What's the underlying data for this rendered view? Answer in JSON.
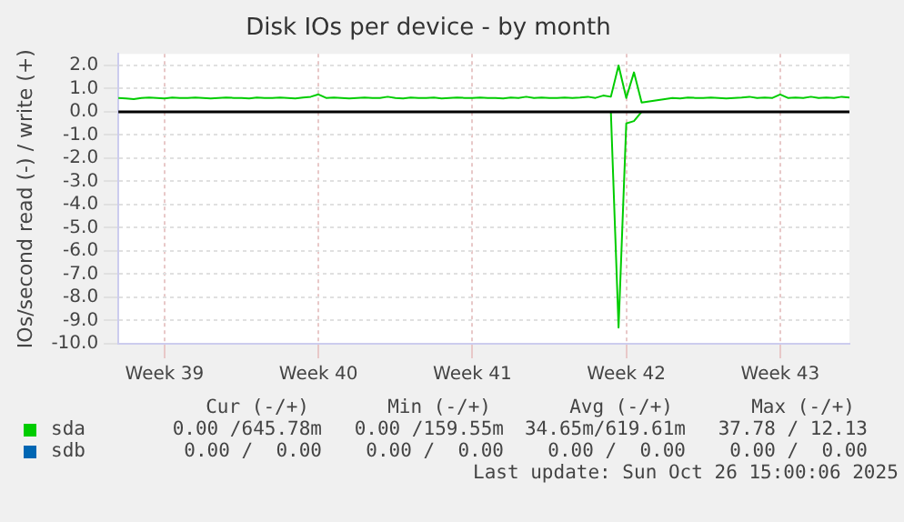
{
  "chart_data": {
    "type": "line",
    "title": "Disk IOs per device - by month",
    "ylabel": "IOs/second read (-) / write (+)",
    "categories": [
      null,
      null,
      null,
      null,
      null,
      null,
      "Week 39",
      null,
      null,
      null,
      null,
      null,
      null,
      null,
      null,
      null,
      null,
      null,
      null,
      null,
      null,
      null,
      null,
      null,
      null,
      null,
      "Week 40",
      null,
      null,
      null,
      null,
      null,
      null,
      null,
      null,
      null,
      null,
      null,
      null,
      null,
      null,
      null,
      null,
      null,
      null,
      null,
      "Week 41",
      null,
      null,
      null,
      null,
      null,
      null,
      null,
      null,
      null,
      null,
      null,
      null,
      null,
      null,
      null,
      null,
      null,
      null,
      null,
      "Week 42",
      null,
      null,
      null,
      null,
      null,
      null,
      null,
      null,
      null,
      null,
      null,
      null,
      null,
      null,
      null,
      null,
      null,
      null,
      null,
      "Week 43",
      null,
      null,
      null,
      null,
      null,
      null,
      null,
      null,
      null
    ],
    "ylim": [
      -10,
      2.5
    ],
    "yticks": [
      {
        "value": -10,
        "label": "-10.0"
      },
      {
        "value": -9,
        "label": "-9.0"
      },
      {
        "value": -8,
        "label": "-8.0"
      },
      {
        "value": -7,
        "label": "-7.0"
      },
      {
        "value": -6,
        "label": "-6.0"
      },
      {
        "value": -5,
        "label": "-5.0"
      },
      {
        "value": -4,
        "label": "-4.0"
      },
      {
        "value": -3,
        "label": "-3.0"
      },
      {
        "value": -2,
        "label": "-2.0"
      },
      {
        "value": -1,
        "label": "-1.0"
      },
      {
        "value": 0,
        "label": "0.0"
      },
      {
        "value": 1,
        "label": "1.0"
      },
      {
        "value": 2,
        "label": "2.0"
      }
    ],
    "grid": true,
    "legend": "bottom",
    "marker": "none",
    "line_style": "solid",
    "ref_lines": [
      {
        "axis": "y",
        "value": 0,
        "color": "#000000"
      }
    ],
    "series": [
      {
        "name": "sda",
        "color": "#00cc00",
        "values": [
          0.6,
          0.58,
          0.55,
          0.6,
          0.62,
          0.6,
          0.58,
          0.62,
          0.6,
          0.6,
          0.62,
          0.6,
          0.58,
          0.6,
          0.62,
          0.6,
          0.6,
          0.58,
          0.62,
          0.6,
          0.6,
          0.62,
          0.6,
          0.58,
          0.62,
          0.65,
          0.75,
          0.6,
          0.62,
          0.6,
          0.58,
          0.6,
          0.62,
          0.6,
          0.6,
          0.65,
          0.6,
          0.58,
          0.62,
          0.6,
          0.6,
          0.62,
          0.58,
          0.6,
          0.62,
          0.6,
          0.6,
          0.62,
          0.6,
          0.6,
          0.58,
          0.62,
          0.6,
          0.65,
          0.6,
          0.62,
          0.6,
          0.6,
          0.62,
          0.6,
          0.62,
          0.65,
          0.6,
          0.7,
          0.65,
          2.0,
          0.6,
          1.7,
          0.4,
          0.45,
          0.5,
          0.55,
          0.6,
          0.58,
          0.62,
          0.6,
          0.6,
          0.62,
          0.6,
          0.58,
          0.6,
          0.62,
          0.65,
          0.6,
          0.62,
          0.6,
          0.75,
          0.6,
          0.62,
          0.6,
          0.65,
          0.6,
          0.62,
          0.6,
          0.65,
          0.62
        ]
      },
      {
        "color": "#00cc00",
        "values": [
          null,
          null,
          null,
          null,
          null,
          null,
          null,
          null,
          null,
          null,
          null,
          null,
          null,
          null,
          null,
          null,
          null,
          null,
          null,
          null,
          null,
          null,
          null,
          null,
          null,
          null,
          null,
          null,
          null,
          null,
          null,
          null,
          null,
          null,
          null,
          null,
          null,
          null,
          null,
          null,
          null,
          null,
          null,
          null,
          null,
          null,
          null,
          null,
          null,
          null,
          null,
          null,
          null,
          null,
          null,
          null,
          null,
          null,
          null,
          null,
          null,
          null,
          null,
          null,
          0,
          -9.3,
          -0.5,
          -0.4,
          0,
          null,
          null,
          null,
          null,
          null,
          null,
          null,
          null,
          null,
          null,
          null,
          null,
          null,
          null,
          null,
          null,
          null,
          null,
          null,
          null,
          null,
          null,
          null,
          null,
          null,
          null,
          null
        ]
      },
      {
        "name": "sdb",
        "color": "#0066b3",
        "values": [
          null,
          null,
          null,
          null,
          null,
          null,
          null,
          null,
          null,
          null,
          null,
          null,
          null,
          null,
          null,
          null,
          null,
          null,
          null,
          null,
          null,
          null,
          null,
          null,
          null,
          null,
          null,
          null,
          null,
          null,
          null,
          null,
          null,
          null,
          null,
          null,
          null,
          null,
          null,
          null,
          null,
          null,
          null,
          null,
          null,
          null,
          null,
          null,
          null,
          null,
          null,
          null,
          null,
          null,
          null,
          null,
          null,
          null,
          null,
          null,
          null,
          null,
          null,
          null,
          null,
          null,
          null,
          null,
          null,
          null,
          null,
          null,
          null,
          null,
          null,
          null,
          null,
          null,
          null,
          null,
          null,
          null,
          null,
          null,
          null,
          null,
          null,
          null,
          null,
          null,
          null,
          null,
          null,
          null,
          null,
          null
        ]
      }
    ],
    "annotations": [
      "Cur (-/+)",
      "Min (-/+)",
      "Avg (-/+)",
      "Max (-/+)",
      "0.00 /645.78m",
      "0.00 /159.55m",
      "34.65m/619.61m",
      "37.78 / 12.13",
      "0.00 /  0.00",
      "0.00 /  0.00",
      "0.00 /  0.00",
      "0.00 /  0.00",
      "Last update: Sun Oct 26 15:00:06 2025"
    ]
  }
}
